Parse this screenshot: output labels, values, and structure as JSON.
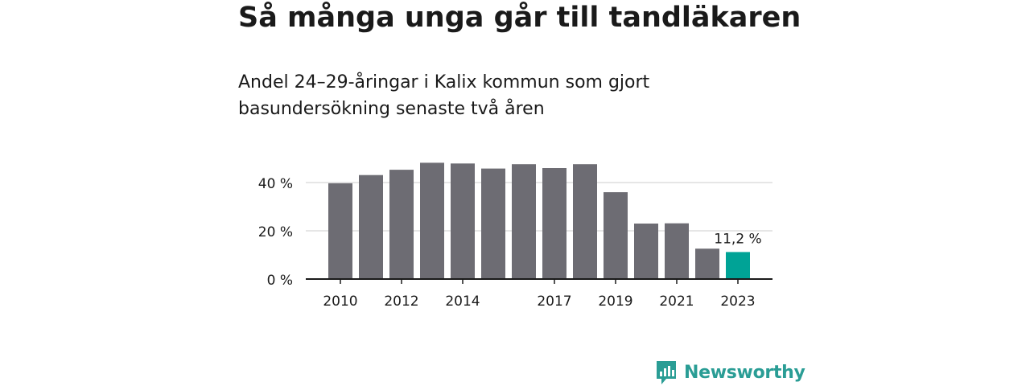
{
  "title": "Så många unga går till tandläkaren",
  "subtitle": "Andel 24–29-åringar i Kalix kommun som gjort basundersökning senaste två åren",
  "brand": {
    "name": "Newsworthy",
    "color": "#2a9d95"
  },
  "colors": {
    "bar": "#6d6c73",
    "highlight": "#00a396",
    "grid": "#d8d8d8",
    "axis": "#1a1a1a"
  },
  "chart_data": {
    "type": "bar",
    "x": [
      2010,
      2011,
      2012,
      2013,
      2014,
      2015,
      2016,
      2017,
      2018,
      2019,
      2020,
      2021,
      2022,
      2023
    ],
    "values": [
      39.7,
      43.1,
      45.3,
      48.2,
      47.9,
      45.8,
      47.6,
      46.0,
      47.6,
      36.0,
      23.0,
      23.1,
      12.6,
      11.2
    ],
    "x_tick_labels": [
      "2010",
      "2012",
      "2014",
      "2017",
      "2019",
      "2021",
      "2023"
    ],
    "ylim": [
      0,
      50
    ],
    "y_ticks": [
      0,
      20,
      40
    ],
    "y_tick_labels": [
      "0 %",
      "20 %",
      "40 %"
    ],
    "highlight_index": 13,
    "data_label": "11,2 %",
    "grid": true
  }
}
